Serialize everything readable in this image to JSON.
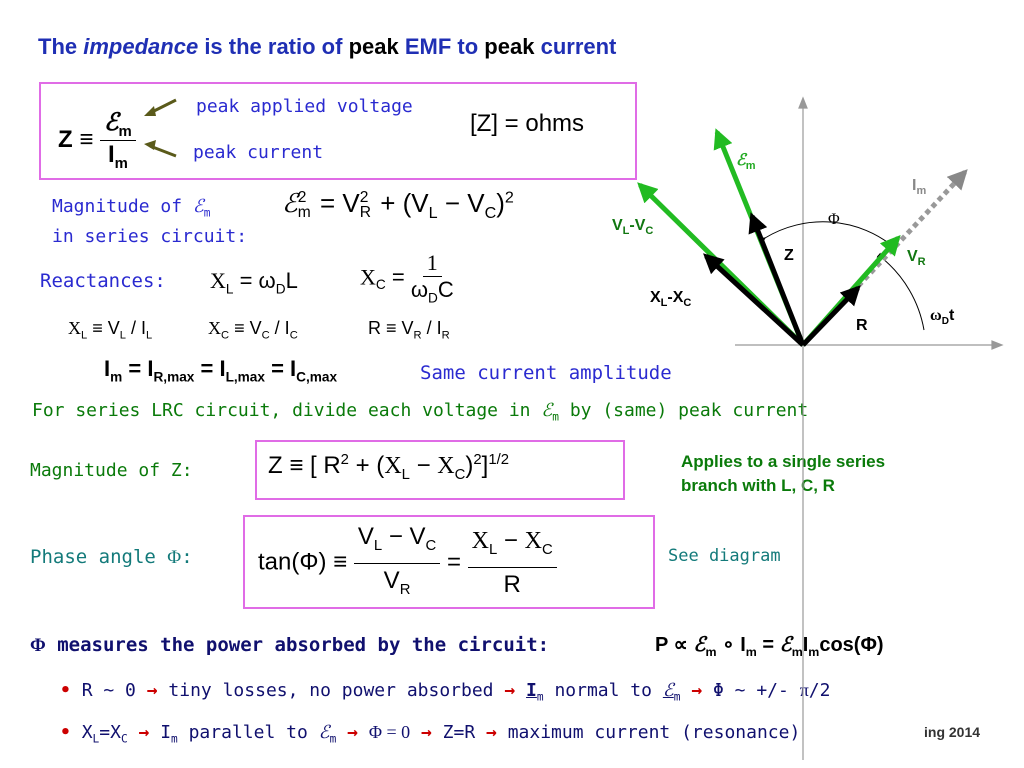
{
  "title": [
    "The",
    "impedance",
    "is the ratio of",
    "peak",
    "EMF to",
    "peak",
    "current"
  ],
  "def": {
    "z": "Z ≡",
    "num": "ℰ",
    "num_sub": "m",
    "den": "I",
    "den_sub": "m",
    "note_voltage": "peak applied voltage",
    "note_current": "peak current",
    "units": "[Z] = ohms"
  },
  "emf_magnitude": {
    "label": "Magnitude of",
    "sym": "ℰ",
    "sym_sub": "m",
    "label2": "in series circuit:",
    "eq": [
      "ℰ",
      "2",
      "m",
      "= V",
      "2",
      "R",
      "+ (V",
      "L",
      "− V",
      "C",
      ")",
      "2"
    ]
  },
  "reactances": {
    "label": "Reactances:",
    "xl": [
      "X",
      "L",
      "= ω",
      "D",
      "L"
    ],
    "xc": [
      "X",
      "C",
      "=",
      "1",
      "ω",
      "D",
      "C"
    ]
  },
  "ohm_laws": [
    [
      "X",
      "L",
      "≡ V",
      "L",
      "/ I",
      "L"
    ],
    [
      "X",
      "C",
      "≡ V",
      "C",
      "/ I",
      "C"
    ],
    [
      "R ≡ V",
      "R",
      "/ I",
      "R"
    ]
  ],
  "amplitude": {
    "eq": [
      "I",
      "m",
      "= I",
      "R,max",
      "= I",
      "L,max",
      "= I",
      "C,max"
    ],
    "note": "Same current amplitude"
  },
  "divide": [
    "For series LRC circuit, divide each voltage in",
    "ℰ",
    "m",
    "by (same) peak current"
  ],
  "z_magnitude": {
    "label": "Magnitude of Z:",
    "eq": [
      "Z ≡ [ R",
      "2",
      "+ (",
      "X",
      "L",
      "−",
      "X",
      "C",
      ")",
      "2",
      "]",
      "1/2"
    ],
    "note": [
      "Applies to a single series",
      "branch with L, C, R"
    ]
  },
  "phase": {
    "label": [
      "Phase angle",
      "Φ",
      ":"
    ],
    "eq": [
      "tan(Φ) ≡",
      "V",
      "L",
      "− V",
      "C",
      "V",
      "R",
      "=",
      "X",
      "L",
      "−",
      "X",
      "C",
      "R"
    ],
    "note": "See diagram"
  },
  "power": {
    "text": [
      "Φ",
      "measures the power absorbed by the circuit:"
    ],
    "eq": [
      "P ∝",
      "ℰ",
      "m",
      "∘",
      "I",
      "m",
      "=",
      "ℰ",
      "m",
      "I",
      "m",
      "cos(Φ)"
    ]
  },
  "bullets": [
    [
      "•",
      "R ~ 0",
      "→",
      "tiny losses, no power absorbed",
      "→",
      "I",
      "m",
      "normal to",
      "ℰ",
      "m",
      "→",
      "Φ ~ +/-",
      "π",
      "/2"
    ],
    [
      "•",
      "X",
      "L",
      "=X",
      "C",
      "→",
      "I",
      "m",
      "parallel to",
      "ℰ",
      "m",
      "→",
      "Φ = 0",
      "→",
      "Z=R",
      "→",
      "maximum current (resonance)"
    ]
  ],
  "footer": "ing 2014",
  "diagram": {
    "emf": [
      "ℰ",
      "m"
    ],
    "im": [
      "I",
      "m"
    ],
    "vl_vc": [
      "V",
      "L",
      "-V",
      "C"
    ],
    "z": "Z",
    "phi": "Φ",
    "vr": [
      "V",
      "R"
    ],
    "xl_xc": [
      "X",
      "L",
      "-X",
      "C"
    ],
    "r": "R",
    "wdt": [
      "ω",
      "D",
      "t"
    ]
  }
}
